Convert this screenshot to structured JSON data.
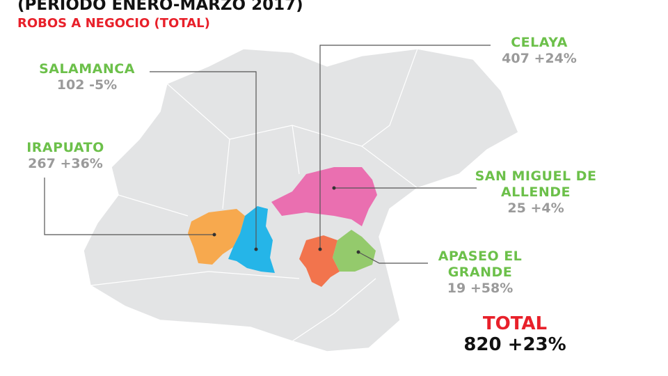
{
  "header": {
    "title": "(PERIODO ENERO-MARZO 2017)",
    "subtitle": "ROBOS A NEGOCIO (TOTAL)"
  },
  "municipalities": [
    {
      "name": "SALAMANCA",
      "count": 102,
      "change": "-5%"
    },
    {
      "name": "CELAYA",
      "count": 407,
      "change": "+24%"
    },
    {
      "name": "IRAPUATO",
      "count": 267,
      "change": "+36%"
    },
    {
      "name": "SAN MIGUEL DE ALLENDE",
      "count": 25,
      "change": "+4%"
    },
    {
      "name": "APASEO EL GRANDE",
      "count": 19,
      "change": "+58%"
    }
  ],
  "total": {
    "label": "TOTAL",
    "count": 820,
    "change": "+23%"
  }
}
